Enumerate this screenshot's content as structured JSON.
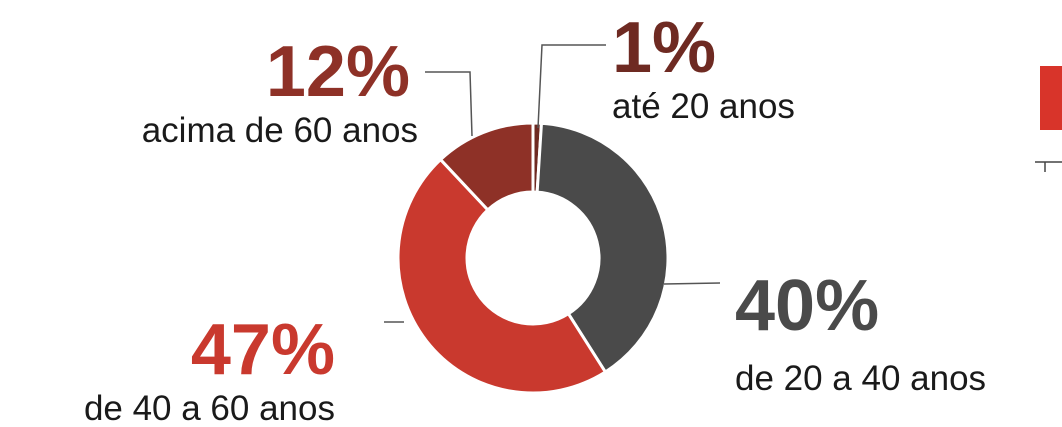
{
  "chart_data": {
    "type": "donut",
    "categories": [
      "até 20 anos",
      "de 20 a 40 anos",
      "de 40 a 60 anos",
      "acima de 60 anos"
    ],
    "values": [
      1,
      40,
      47,
      12
    ],
    "value_labels": [
      "1%",
      "40%",
      "47%",
      "12%"
    ],
    "colors": [
      "#6e2a22",
      "#4a4a4a",
      "#c9392e",
      "#8e3127"
    ]
  }
}
